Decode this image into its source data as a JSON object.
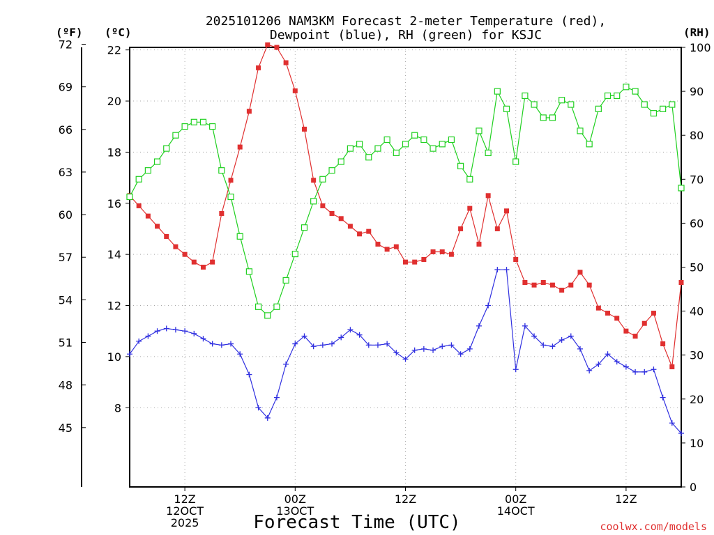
{
  "chart_data": {
    "type": "line",
    "title": [
      "2025101206 NAM3KM Forecast 2-meter Temperature (red),",
      "Dewpoint (blue), RH (green) for KSJC"
    ],
    "xlabel": "Forecast Time (UTC)",
    "credit": "coolwx.com/models",
    "axis_units": {
      "fahrenheit": "(ºF)",
      "celsius": "(ºC)",
      "rh": "(RH)"
    },
    "celsius_axis": {
      "range": [
        4.9,
        22.1
      ],
      "ticks": [
        "8",
        "10",
        "12",
        "14",
        "16",
        "18",
        "20",
        "22"
      ]
    },
    "fahrenheit_axis": {
      "ticks": [
        "45",
        "48",
        "51",
        "54",
        "57",
        "60",
        "63",
        "66",
        "69",
        "72"
      ]
    },
    "rh_axis": {
      "range": [
        0,
        100
      ],
      "ticks": [
        "0",
        "10",
        "20",
        "30",
        "40",
        "50",
        "60",
        "70",
        "80",
        "90",
        "100"
      ]
    },
    "x_axis": {
      "range_hours": [
        6,
        66
      ],
      "tick_hours": [
        12,
        24,
        36,
        48,
        60
      ],
      "labels": [
        {
          "hour": 12,
          "lines": [
            "12Z",
            "12OCT",
            "2025"
          ]
        },
        {
          "hour": 24,
          "lines": [
            "00Z",
            "13OCT"
          ]
        },
        {
          "hour": 36,
          "lines": [
            "12Z"
          ]
        },
        {
          "hour": 48,
          "lines": [
            "00Z",
            "14OCT"
          ]
        },
        {
          "hour": 60,
          "lines": [
            "12Z"
          ]
        }
      ]
    },
    "series": [
      {
        "name": "2-meter Temperature",
        "units": "°C",
        "color": "#e03030",
        "marker": "filled-square",
        "start_hour": 6,
        "step_hours": 1,
        "values": [
          16.3,
          15.9,
          15.5,
          15.1,
          14.7,
          14.3,
          14.0,
          13.7,
          13.5,
          13.7,
          15.6,
          16.9,
          18.2,
          19.6,
          21.3,
          22.2,
          22.1,
          21.5,
          20.4,
          18.9,
          16.9,
          15.9,
          15.6,
          15.4,
          15.1,
          14.8,
          14.9,
          14.4,
          14.2,
          14.3,
          13.7,
          13.7,
          13.8,
          14.1,
          14.1,
          14.0,
          15.0,
          15.8,
          14.4,
          16.3,
          15.0,
          15.7,
          13.8,
          12.9,
          12.8,
          12.9,
          12.8,
          12.6,
          12.8,
          13.3,
          12.8,
          11.9,
          11.7,
          11.5,
          11.0,
          10.8,
          11.3,
          11.7,
          10.5,
          9.6,
          12.9
        ]
      },
      {
        "name": "Dewpoint",
        "units": "°C",
        "color": "#3030e0",
        "marker": "plus",
        "start_hour": 6,
        "step_hours": 1,
        "values": [
          10.1,
          10.6,
          10.8,
          11.0,
          11.1,
          11.05,
          11.0,
          10.9,
          10.7,
          10.5,
          10.45,
          10.5,
          10.1,
          9.3,
          8.0,
          7.6,
          8.4,
          9.7,
          10.5,
          10.8,
          10.4,
          10.45,
          10.5,
          10.75,
          11.05,
          10.85,
          10.45,
          10.45,
          10.5,
          10.15,
          9.9,
          10.25,
          10.3,
          10.25,
          10.4,
          10.45,
          10.1,
          10.3,
          11.2,
          12.0,
          13.4,
          13.4,
          9.5,
          11.2,
          10.8,
          10.45,
          10.4,
          10.65,
          10.8,
          10.3,
          9.45,
          9.7,
          10.1,
          9.8,
          9.6,
          9.4,
          9.4,
          9.5,
          8.4,
          7.4,
          7.0
        ]
      },
      {
        "name": "Relative Humidity",
        "units": "%",
        "color": "#20d020",
        "marker": "open-square",
        "start_hour": 6,
        "step_hours": 1,
        "values": [
          66,
          70,
          72,
          74,
          77,
          80,
          82,
          83,
          83,
          82,
          72,
          66,
          57,
          49,
          41,
          39,
          41,
          47,
          53,
          59,
          65,
          70,
          72,
          74,
          77,
          78,
          75,
          77,
          79,
          76,
          78,
          80,
          79,
          77,
          78,
          79,
          73,
          70,
          81,
          76,
          90,
          86,
          74,
          89,
          87,
          84,
          84,
          88,
          87,
          81,
          78,
          86,
          89,
          89,
          91,
          90,
          87,
          85,
          86,
          87,
          68
        ]
      }
    ]
  }
}
